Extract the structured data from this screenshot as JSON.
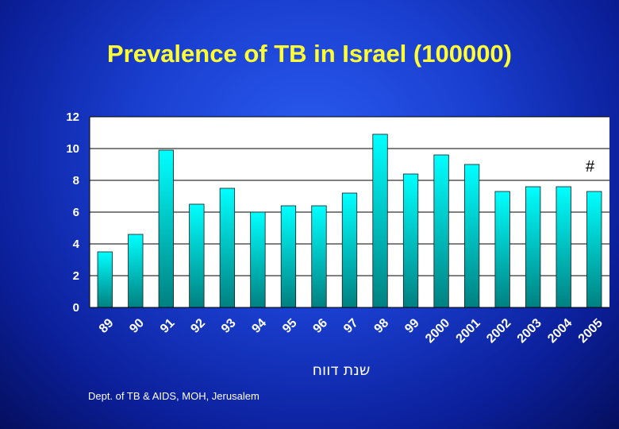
{
  "chart_data": {
    "type": "bar",
    "title": "Prevalence of TB in Israel (100000)",
    "xlabel": "שנת דווח",
    "ylabel": "",
    "ylim": [
      0,
      12
    ],
    "yticks": [
      "0",
      "2",
      "4",
      "6",
      "8",
      "10",
      "12"
    ],
    "grid": true,
    "categories": [
      "89",
      "90",
      "91",
      "92",
      "93",
      "94",
      "95",
      "96",
      "97",
      "98",
      "99",
      "2000",
      "2001",
      "2002",
      "2003",
      "2004",
      "2005"
    ],
    "values": [
      3.5,
      4.6,
      9.9,
      6.5,
      7.5,
      6.0,
      6.4,
      6.4,
      7.2,
      10.9,
      8.4,
      9.6,
      9.0,
      7.3,
      7.6,
      7.6,
      7.3
    ],
    "annotation": "#",
    "colors": {
      "bar_top": "#00ffff",
      "bar_bottom": "#008080",
      "plot_bg": "#ffffff",
      "title": "#ffff33",
      "axis_text": "#ffffff"
    }
  },
  "footer": "Dept. of TB & AIDS, MOH, Jerusalem"
}
